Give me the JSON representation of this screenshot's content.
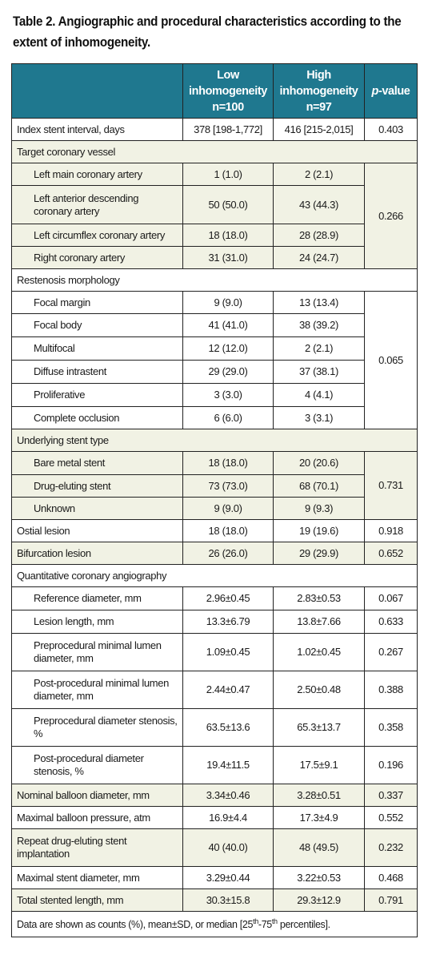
{
  "title": "Table 2. Angiographic and procedural characteristics according to the extent of inhomogeneity.",
  "header": {
    "col1": [
      "Low",
      "inhomogeneity",
      "n=100"
    ],
    "col2": [
      "High",
      "inhomogeneity",
      "n=97"
    ],
    "col3_italic": "p",
    "col3_rest": "-value"
  },
  "rows": {
    "index_stent": {
      "label": "Index stent interval, days",
      "low": "378 [198-1,772]",
      "high": "416 [215-2,015]",
      "p": "0.403"
    },
    "target_vessel": {
      "label": "Target coronary vessel",
      "p": "0.266",
      "items": [
        {
          "label": "Left main coronary artery",
          "low": "1 (1.0)",
          "high": "2 (2.1)"
        },
        {
          "label": "Left anterior descending coronary artery",
          "low": "50 (50.0)",
          "high": "43 (44.3)"
        },
        {
          "label": "Left circumflex coronary artery",
          "low": "18 (18.0)",
          "high": "28 (28.9)"
        },
        {
          "label": "Right coronary artery",
          "low": "31 (31.0)",
          "high": "24 (24.7)"
        }
      ]
    },
    "restenosis": {
      "label": "Restenosis morphology",
      "p": "0.065",
      "items": [
        {
          "label": "Focal margin",
          "low": "9 (9.0)",
          "high": "13 (13.4)"
        },
        {
          "label": "Focal body",
          "low": "41 (41.0)",
          "high": "38 (39.2)"
        },
        {
          "label": "Multifocal",
          "low": "12 (12.0)",
          "high": "2 (2.1)"
        },
        {
          "label": "Diffuse intrastent",
          "low": "29 (29.0)",
          "high": "37 (38.1)"
        },
        {
          "label": "Proliferative",
          "low": "3 (3.0)",
          "high": "4 (4.1)"
        },
        {
          "label": "Complete occlusion",
          "low": "6 (6.0)",
          "high": "3 (3.1)"
        }
      ]
    },
    "stent_type": {
      "label": "Underlying stent type",
      "p": "0.731",
      "items": [
        {
          "label": "Bare metal stent",
          "low": "18 (18.0)",
          "high": "20 (20.6)"
        },
        {
          "label": "Drug-eluting stent",
          "low": "73 (73.0)",
          "high": "68 (70.1)"
        },
        {
          "label": "Unknown",
          "low": "9 (9.0)",
          "high": "9 (9.3)"
        }
      ]
    },
    "ostial": {
      "label": "Ostial lesion",
      "low": "18 (18.0)",
      "high": "19 (19.6)",
      "p": "0.918"
    },
    "bifurcation": {
      "label": "Bifurcation lesion",
      "low": "26 (26.0)",
      "high": "29 (29.9)",
      "p": "0.652"
    },
    "qca": {
      "label": "Quantitative coronary angiography",
      "items": [
        {
          "label": "Reference diameter, mm",
          "low": "2.96±0.45",
          "high": "2.83±0.53",
          "p": "0.067"
        },
        {
          "label": "Lesion length, mm",
          "low": "13.3±6.79",
          "high": "13.8±7.66",
          "p": "0.633"
        },
        {
          "label": "Preprocedural minimal lumen diameter, mm",
          "low": "1.09±0.45",
          "high": "1.02±0.45",
          "p": "0.267"
        },
        {
          "label": "Post-procedural minimal lumen diameter, mm",
          "low": "2.44±0.47",
          "high": "2.50±0.48",
          "p": "0.388"
        },
        {
          "label": "Preprocedural diameter stenosis, %",
          "low": "63.5±13.6",
          "high": "65.3±13.7",
          "p": "0.358"
        },
        {
          "label": "Post-procedural diameter stenosis, %",
          "low": "19.4±11.5",
          "high": "17.5±9.1",
          "p": "0.196"
        }
      ]
    },
    "nominal_balloon": {
      "label": "Nominal balloon diameter, mm",
      "low": "3.34±0.46",
      "high": "3.28±0.51",
      "p": "0.337"
    },
    "max_balloon": {
      "label": "Maximal balloon pressure, atm",
      "low": "16.9±4.4",
      "high": "17.3±4.9",
      "p": "0.552"
    },
    "repeat_des": {
      "label": "Repeat drug-eluting stent implantation",
      "low": "40 (40.0)",
      "high": "48 (49.5)",
      "p": "0.232"
    },
    "max_stent": {
      "label": "Maximal stent diameter, mm",
      "low": "3.29±0.44",
      "high": "3.22±0.53",
      "p": "0.468"
    },
    "total_length": {
      "label": "Total stented length, mm",
      "low": "30.3±15.8",
      "high": "29.3±12.9",
      "p": "0.791"
    }
  },
  "footnote": {
    "a": "Data are shown as counts (%), mean±SD, or median [25",
    "sup1": "th",
    "b": "-75",
    "sup2": "th",
    "c": " percentiles]."
  },
  "colors": {
    "header_bg": "#1f788f",
    "shade_bg": "#f1f2e4"
  }
}
